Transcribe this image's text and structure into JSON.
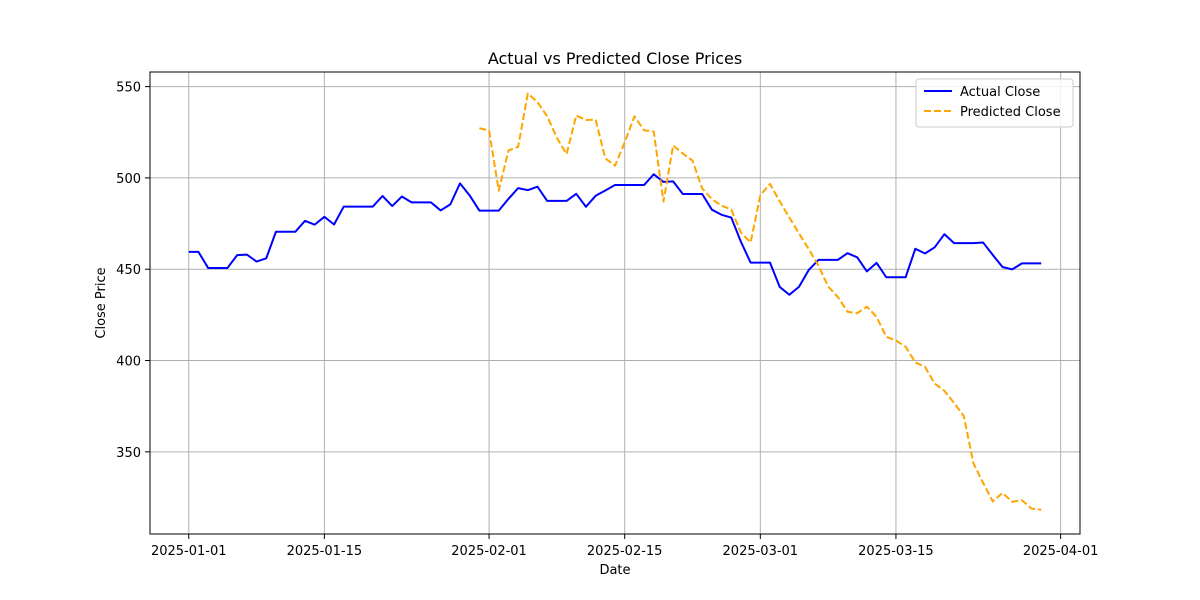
{
  "chart_data": {
    "type": "line",
    "title": "Actual vs Predicted Close Prices",
    "xlabel": "Date",
    "ylabel": "Close Price",
    "xlim": [
      "2024-12-28",
      "2025-04-03"
    ],
    "ylim": [
      305,
      558
    ],
    "x_ticks": [
      "2025-01-01",
      "2025-01-15",
      "2025-02-01",
      "2025-02-15",
      "2025-03-01",
      "2025-03-15",
      "2025-04-01"
    ],
    "y_ticks": [
      350,
      400,
      450,
      500,
      550
    ],
    "grid": true,
    "legend": "top-right",
    "series": [
      {
        "name": "Actual Close",
        "color": "#0000ff",
        "style": "solid",
        "points": [
          [
            "2025-01-01",
            459.5
          ],
          [
            "2025-01-02",
            459.5
          ],
          [
            "2025-01-03",
            450.7
          ],
          [
            "2025-01-04",
            450.7
          ],
          [
            "2025-01-05",
            450.7
          ],
          [
            "2025-01-06",
            457.7
          ],
          [
            "2025-01-07",
            458.0
          ],
          [
            "2025-01-08",
            454.2
          ],
          [
            "2025-01-09",
            456.0
          ],
          [
            "2025-01-10",
            470.5
          ],
          [
            "2025-01-11",
            470.5
          ],
          [
            "2025-01-12",
            470.5
          ],
          [
            "2025-01-13",
            476.5
          ],
          [
            "2025-01-14",
            474.4
          ],
          [
            "2025-01-15",
            478.7
          ],
          [
            "2025-01-16",
            474.5
          ],
          [
            "2025-01-17",
            484.3
          ],
          [
            "2025-01-18",
            484.3
          ],
          [
            "2025-01-19",
            484.3
          ],
          [
            "2025-01-20",
            484.3
          ],
          [
            "2025-01-21",
            490.1
          ],
          [
            "2025-01-22",
            484.6
          ],
          [
            "2025-01-23",
            489.8
          ],
          [
            "2025-01-24",
            486.6
          ],
          [
            "2025-01-25",
            486.6
          ],
          [
            "2025-01-26",
            486.6
          ],
          [
            "2025-01-27",
            482.2
          ],
          [
            "2025-01-28",
            485.5
          ],
          [
            "2025-01-29",
            497.0
          ],
          [
            "2025-01-30",
            490.4
          ],
          [
            "2025-01-31",
            482.1
          ],
          [
            "2025-02-01",
            482.1
          ],
          [
            "2025-02-02",
            482.1
          ],
          [
            "2025-02-03",
            488.5
          ],
          [
            "2025-02-04",
            494.4
          ],
          [
            "2025-02-05",
            493.3
          ],
          [
            "2025-02-06",
            495.2
          ],
          [
            "2025-02-07",
            487.4
          ],
          [
            "2025-02-08",
            487.4
          ],
          [
            "2025-02-09",
            487.4
          ],
          [
            "2025-02-10",
            491.3
          ],
          [
            "2025-02-11",
            484.2
          ],
          [
            "2025-02-12",
            490.2
          ],
          [
            "2025-02-13",
            493.1
          ],
          [
            "2025-02-14",
            496.1
          ],
          [
            "2025-02-15",
            496.1
          ],
          [
            "2025-02-16",
            496.1
          ],
          [
            "2025-02-17",
            496.1
          ],
          [
            "2025-02-18",
            502.0
          ],
          [
            "2025-02-19",
            497.8
          ],
          [
            "2025-02-20",
            498.1
          ],
          [
            "2025-02-21",
            491.2
          ],
          [
            "2025-02-22",
            491.2
          ],
          [
            "2025-02-23",
            491.2
          ],
          [
            "2025-02-24",
            482.6
          ],
          [
            "2025-02-25",
            479.8
          ],
          [
            "2025-02-26",
            478.3
          ],
          [
            "2025-02-27",
            465.0
          ],
          [
            "2025-02-28",
            453.6
          ],
          [
            "2025-03-01",
            453.6
          ],
          [
            "2025-03-02",
            453.6
          ],
          [
            "2025-03-03",
            440.3
          ],
          [
            "2025-03-04",
            436.0
          ],
          [
            "2025-03-05",
            440.4
          ],
          [
            "2025-03-06",
            449.6
          ],
          [
            "2025-03-07",
            455.1
          ],
          [
            "2025-03-08",
            455.1
          ],
          [
            "2025-03-09",
            455.1
          ],
          [
            "2025-03-10",
            458.8
          ],
          [
            "2025-03-11",
            456.5
          ],
          [
            "2025-03-12",
            448.8
          ],
          [
            "2025-03-13",
            453.5
          ],
          [
            "2025-03-14",
            445.6
          ],
          [
            "2025-03-15",
            445.6
          ],
          [
            "2025-03-16",
            445.6
          ],
          [
            "2025-03-17",
            461.2
          ],
          [
            "2025-03-18",
            458.6
          ],
          [
            "2025-03-19",
            462.0
          ],
          [
            "2025-03-20",
            469.2
          ],
          [
            "2025-03-21",
            464.3
          ],
          [
            "2025-03-22",
            464.3
          ],
          [
            "2025-03-23",
            464.3
          ],
          [
            "2025-03-24",
            464.6
          ],
          [
            "2025-03-25",
            457.8
          ],
          [
            "2025-03-26",
            451.2
          ],
          [
            "2025-03-27",
            449.9
          ],
          [
            "2025-03-28",
            453.2
          ],
          [
            "2025-03-29",
            453.2
          ],
          [
            "2025-03-30",
            453.2
          ]
        ]
      },
      {
        "name": "Predicted Close",
        "color": "#ffa500",
        "style": "dashed",
        "points": [
          [
            "2025-01-31",
            527.2
          ],
          [
            "2025-02-01",
            526.0
          ],
          [
            "2025-02-02",
            493.0
          ],
          [
            "2025-02-03",
            515.0
          ],
          [
            "2025-02-04",
            517.0
          ],
          [
            "2025-02-05",
            546.2
          ],
          [
            "2025-02-06",
            541.5
          ],
          [
            "2025-02-07",
            533.7
          ],
          [
            "2025-02-08",
            522.0
          ],
          [
            "2025-02-09",
            513.0
          ],
          [
            "2025-02-10",
            534.2
          ],
          [
            "2025-02-11",
            531.7
          ],
          [
            "2025-02-12",
            531.9
          ],
          [
            "2025-02-13",
            510.7
          ],
          [
            "2025-02-14",
            506.7
          ],
          [
            "2025-02-15",
            519.4
          ],
          [
            "2025-02-16",
            533.7
          ],
          [
            "2025-02-17",
            526.1
          ],
          [
            "2025-02-18",
            525.4
          ],
          [
            "2025-02-19",
            487.0
          ],
          [
            "2025-02-20",
            517.8
          ],
          [
            "2025-02-21",
            513.4
          ],
          [
            "2025-02-22",
            509.5
          ],
          [
            "2025-02-23",
            494.2
          ],
          [
            "2025-02-24",
            488.4
          ],
          [
            "2025-02-25",
            484.8
          ],
          [
            "2025-02-26",
            482.7
          ],
          [
            "2025-02-27",
            470.0
          ],
          [
            "2025-02-28",
            464.7
          ],
          [
            "2025-03-01",
            490.5
          ],
          [
            "2025-03-02",
            496.7
          ],
          [
            "2025-03-03",
            487.2
          ],
          [
            "2025-03-04",
            478.3
          ],
          [
            "2025-03-05",
            469.6
          ],
          [
            "2025-03-06",
            461.0
          ],
          [
            "2025-03-07",
            452.0
          ],
          [
            "2025-03-08",
            440.6
          ],
          [
            "2025-03-09",
            434.8
          ],
          [
            "2025-03-10",
            426.7
          ],
          [
            "2025-03-11",
            425.9
          ],
          [
            "2025-03-12",
            429.5
          ],
          [
            "2025-03-13",
            423.9
          ],
          [
            "2025-03-14",
            413.0
          ],
          [
            "2025-03-15",
            411.0
          ],
          [
            "2025-03-16",
            407.5
          ],
          [
            "2025-03-17",
            399.0
          ],
          [
            "2025-03-18",
            396.5
          ],
          [
            "2025-03-19",
            387.4
          ],
          [
            "2025-03-20",
            383.4
          ],
          [
            "2025-03-21",
            376.8
          ],
          [
            "2025-03-22",
            369.6
          ],
          [
            "2025-03-23",
            343.7
          ],
          [
            "2025-03-24",
            333.0
          ],
          [
            "2025-03-25",
            322.8
          ],
          [
            "2025-03-26",
            327.5
          ],
          [
            "2025-03-27",
            322.6
          ],
          [
            "2025-03-28",
            323.5
          ],
          [
            "2025-03-29",
            318.9
          ],
          [
            "2025-03-30",
            318.3
          ]
        ]
      }
    ]
  }
}
